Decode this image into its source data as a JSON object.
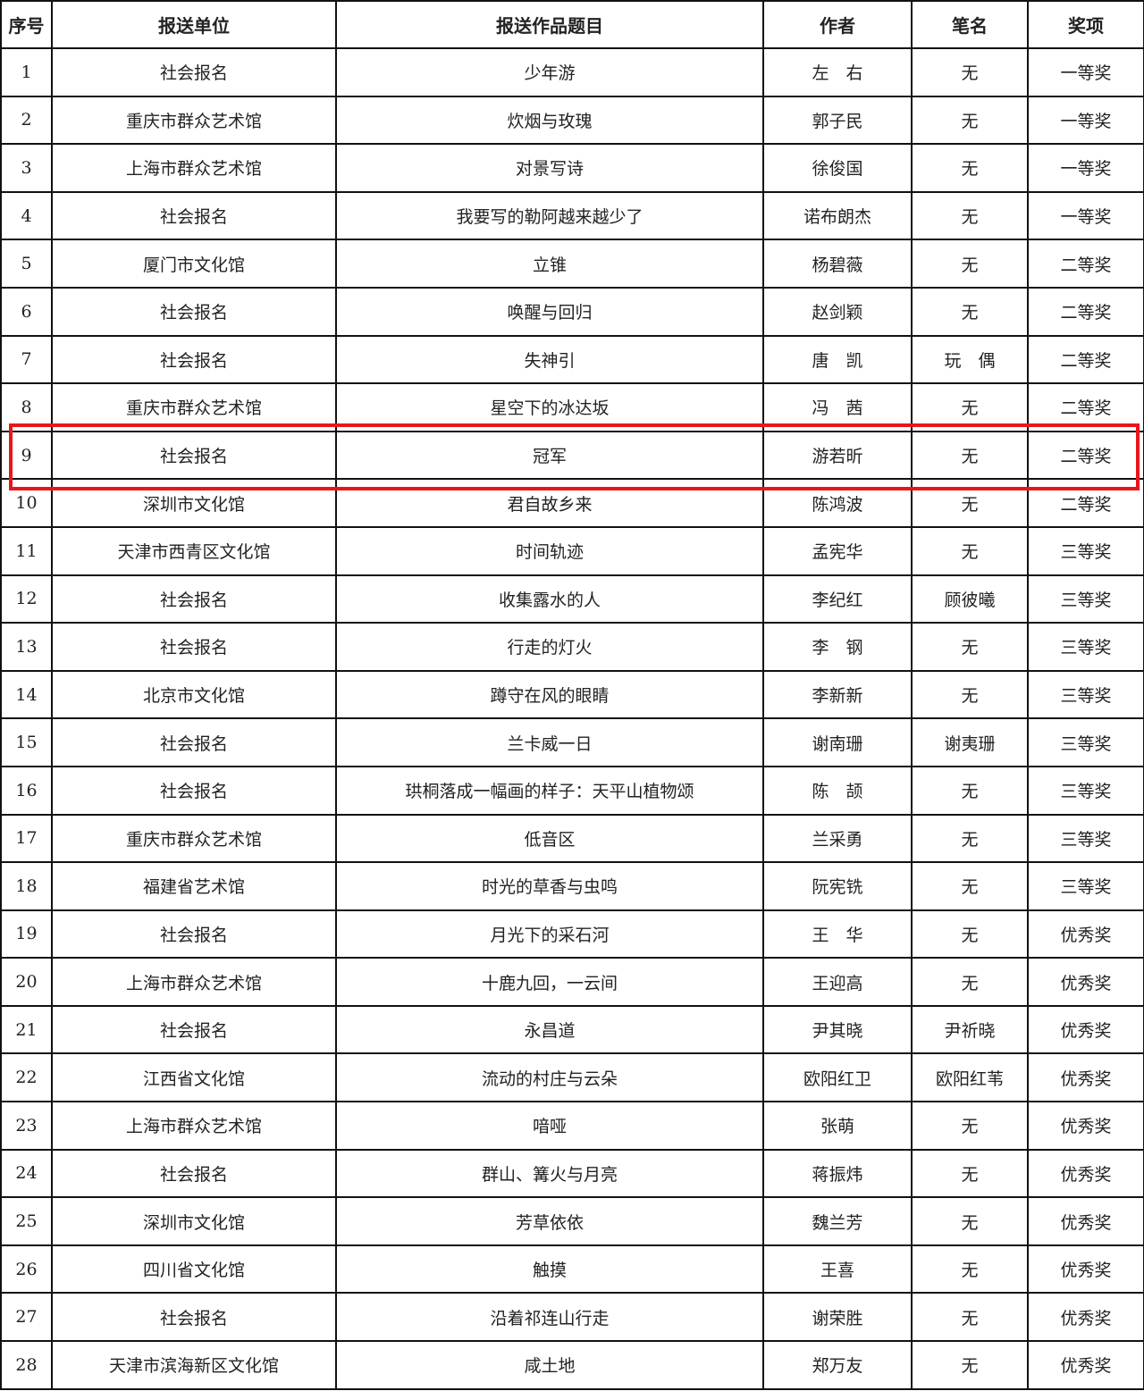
{
  "headers": [
    "序号",
    "报送单位",
    "报送作品题目",
    "作者",
    "笔名",
    "奖项"
  ],
  "rows": [
    [
      "1",
      "社会报名",
      "少年游",
      "左　右",
      "无",
      "一等奖"
    ],
    [
      "2",
      "重庆市群众艺术馆",
      "炊烟与玫瑰",
      "郭子民",
      "无",
      "一等奖"
    ],
    [
      "3",
      "上海市群众艺术馆",
      "对景写诗",
      "徐俊国",
      "无",
      "一等奖"
    ],
    [
      "4",
      "社会报名",
      "我要写的勒阿越来越少了",
      "诺布朗杰",
      "无",
      "一等奖"
    ],
    [
      "5",
      "厦门市文化馆",
      "立锥",
      "杨碧薇",
      "无",
      "二等奖"
    ],
    [
      "6",
      "社会报名",
      "唤醒与回归",
      "赵剑颖",
      "无",
      "二等奖"
    ],
    [
      "7",
      "社会报名",
      "失神引",
      "唐　凯",
      "玩　偶",
      "二等奖"
    ],
    [
      "8",
      "重庆市群众艺术馆",
      "星空下的冰达坂",
      "冯　茜",
      "无",
      "二等奖"
    ],
    [
      "9",
      "社会报名",
      "冠军",
      "游若昕",
      "无",
      "二等奖"
    ],
    [
      "10",
      "深圳市文化馆",
      "君自故乡来",
      "陈鸿波",
      "无",
      "二等奖"
    ],
    [
      "11",
      "天津市西青区文化馆",
      "时间轨迹",
      "孟宪华",
      "无",
      "三等奖"
    ],
    [
      "12",
      "社会报名",
      "收集露水的人",
      "李纪红",
      "顾彼曦",
      "三等奖"
    ],
    [
      "13",
      "社会报名",
      "行走的灯火",
      "李　钢",
      "无",
      "三等奖"
    ],
    [
      "14",
      "北京市文化馆",
      "蹲守在风的眼睛",
      "李新新",
      "无",
      "三等奖"
    ],
    [
      "15",
      "社会报名",
      "兰卡威一日",
      "谢南珊",
      "谢夷珊",
      "三等奖"
    ],
    [
      "16",
      "社会报名",
      "珙桐落成一幅画的样子：天平山植物颂",
      "陈　颉",
      "无",
      "三等奖"
    ],
    [
      "17",
      "重庆市群众艺术馆",
      "低音区",
      "兰采勇",
      "无",
      "三等奖"
    ],
    [
      "18",
      "福建省艺术馆",
      "时光的草香与虫鸣",
      "阮宪铣",
      "无",
      "三等奖"
    ],
    [
      "19",
      "社会报名",
      "月光下的采石河",
      "王　华",
      "无",
      "优秀奖"
    ],
    [
      "20",
      "上海市群众艺术馆",
      "十鹿九回，一云间",
      "王迎高",
      "无",
      "优秀奖"
    ],
    [
      "21",
      "社会报名",
      "永昌道",
      "尹其晓",
      "尹祈晓",
      "优秀奖"
    ],
    [
      "22",
      "江西省文化馆",
      "流动的村庄与云朵",
      "欧阳红卫",
      "欧阳红苇",
      "优秀奖"
    ],
    [
      "23",
      "上海市群众艺术馆",
      "喑哑",
      "张萌",
      "无",
      "优秀奖"
    ],
    [
      "24",
      "社会报名",
      "群山、篝火与月亮",
      "蒋振炜",
      "无",
      "优秀奖"
    ],
    [
      "25",
      "深圳市文化馆",
      "芳草依依",
      "魏兰芳",
      "无",
      "优秀奖"
    ],
    [
      "26",
      "四川省文化馆",
      "触摸",
      "王喜",
      "无",
      "优秀奖"
    ],
    [
      "27",
      "社会报名",
      "沿着祁连山行走",
      "谢荣胜",
      "无",
      "优秀奖"
    ],
    [
      "28",
      "天津市滨海新区文化馆",
      "咸土地",
      "郑万友",
      "无",
      "优秀奖"
    ]
  ],
  "highlight": {
    "row_number": "9",
    "color": "#e8161b"
  }
}
